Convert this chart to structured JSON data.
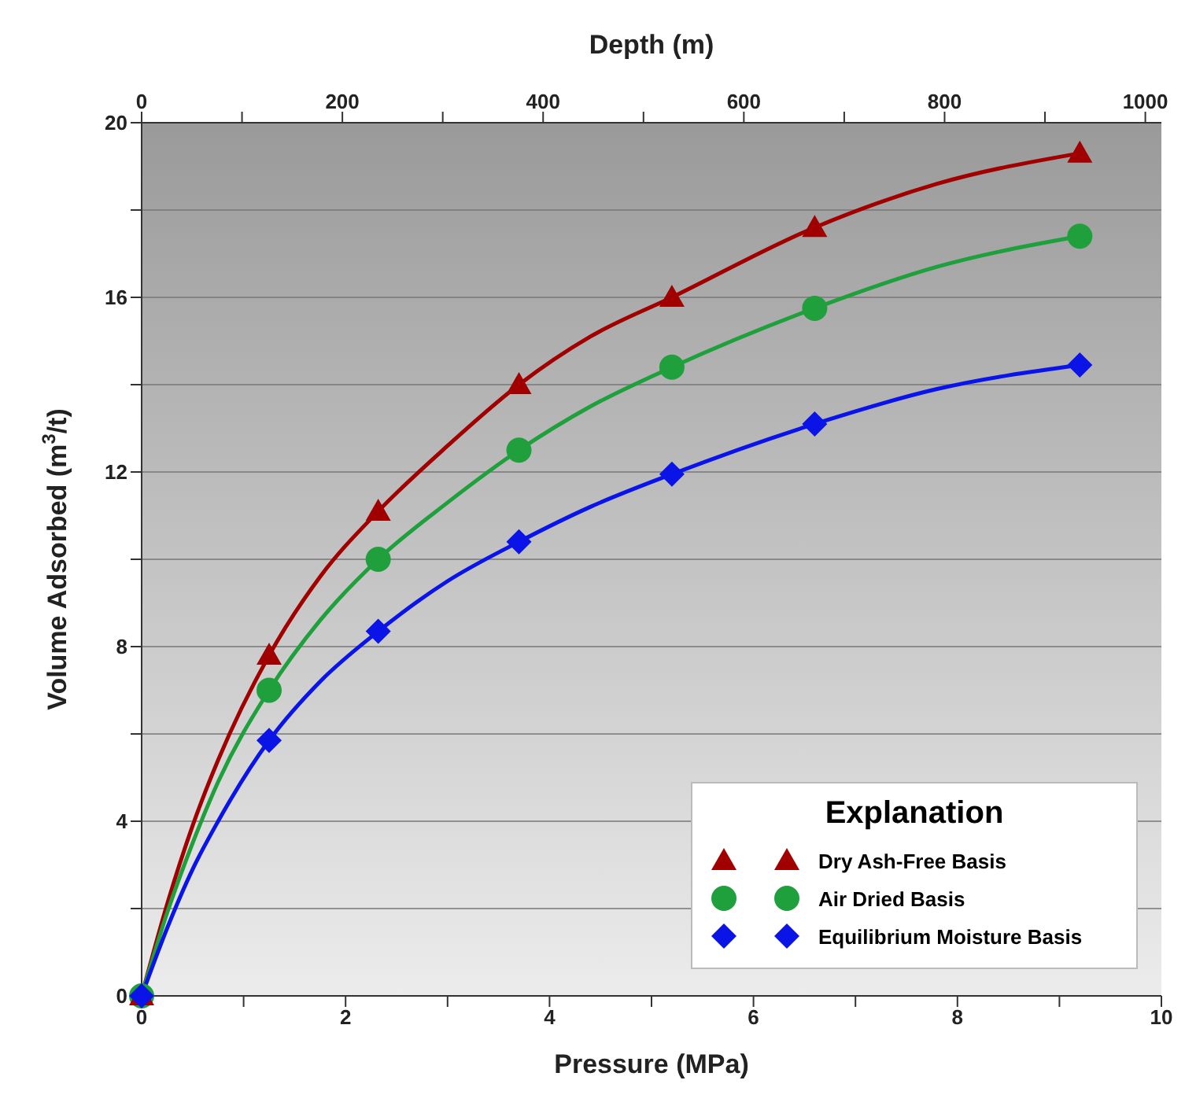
{
  "chart_data": {
    "type": "scatter",
    "xlabel": "Pressure (MPa)",
    "ylabel": "Volume Adsorbed (m$^{3}$/t)",
    "x2label": "Depth (m)",
    "legend_title": "Explanation",
    "xlim": [
      0,
      10
    ],
    "xticks": [
      0,
      {
        "value": 1,
        "label": null
      },
      2,
      {
        "value": 3,
        "label": null
      },
      4,
      {
        "value": 5,
        "label": null
      },
      6,
      {
        "value": 7,
        "label": null
      },
      8,
      {
        "value": 9,
        "label": null
      },
      10
    ],
    "x2lim": [
      0,
      1016
    ],
    "x2ticks": [
      0,
      {
        "value": 100,
        "label": null
      },
      200,
      {
        "value": 300,
        "label": null
      },
      400,
      {
        "value": 500,
        "label": null
      },
      600,
      {
        "value": 700,
        "label": null
      },
      800,
      {
        "value": 900,
        "label": null
      },
      1000
    ],
    "ylim": [
      0,
      20
    ],
    "yticks": [
      0,
      {
        "value": 2,
        "label": null
      },
      4,
      {
        "value": 6,
        "label": null
      },
      8,
      {
        "value": 10,
        "label": null
      },
      12,
      {
        "value": 14,
        "label": null
      },
      16,
      {
        "value": 18,
        "label": null
      },
      20
    ],
    "grid": "y",
    "legend": "bottom right",
    "series": [
      {
        "name": "Dry Ash-Free Basis",
        "marker": "triangle",
        "color": "#a00000",
        "x": [
          0,
          1.25,
          2.32,
          3.7,
          5.2,
          6.6,
          9.2
        ],
        "values": [
          0,
          7.8,
          11.1,
          14.0,
          16.0,
          17.6,
          19.3
        ]
      },
      {
        "name": "Air Dried Basis",
        "marker": "circle",
        "color": "#1fa03c",
        "x": [
          0,
          1.25,
          2.32,
          3.7,
          5.2,
          6.6,
          9.2
        ],
        "values": [
          0,
          7.0,
          10.0,
          12.5,
          14.4,
          15.75,
          17.4
        ]
      },
      {
        "name": "Equilibrium Moisture Basis",
        "marker": "diamond",
        "color": "#0a14e6",
        "x": [
          0,
          1.25,
          2.32,
          3.7,
          5.2,
          6.6,
          9.2
        ],
        "values": [
          0,
          5.85,
          8.35,
          10.4,
          11.95,
          13.1,
          14.45
        ]
      },
      {
        "type": "line",
        "marker": "none",
        "color": "#a00000",
        "x": [
          0,
          0.25,
          0.5,
          0.75,
          1.25,
          1.75,
          2.32,
          3,
          3.7,
          4.4,
          5.2,
          6.6,
          7.8,
          9.2
        ],
        "values": [
          0,
          2.1,
          3.9,
          5.4,
          7.8,
          9.6,
          11.1,
          12.6,
          14.0,
          15.1,
          16.0,
          17.6,
          18.6,
          19.3
        ]
      },
      {
        "type": "line",
        "marker": "none",
        "color": "#1fa03c",
        "x": [
          0,
          0.25,
          0.5,
          0.75,
          1.25,
          1.75,
          2.32,
          3,
          3.7,
          4.4,
          5.2,
          6.6,
          7.8,
          9.2
        ],
        "values": [
          0,
          1.9,
          3.5,
          4.9,
          7.0,
          8.6,
          10.0,
          11.3,
          12.5,
          13.5,
          14.4,
          15.75,
          16.7,
          17.4
        ]
      },
      {
        "type": "line",
        "marker": "none",
        "color": "#0a14e6",
        "x": [
          0,
          0.25,
          0.5,
          0.75,
          1.25,
          1.75,
          2.32,
          3,
          3.7,
          4.4,
          5.2,
          6.6,
          7.8,
          9.2
        ],
        "values": [
          0,
          1.55,
          2.9,
          4.0,
          5.85,
          7.2,
          8.35,
          9.5,
          10.4,
          11.2,
          11.95,
          13.1,
          13.9,
          14.45
        ]
      }
    ]
  }
}
